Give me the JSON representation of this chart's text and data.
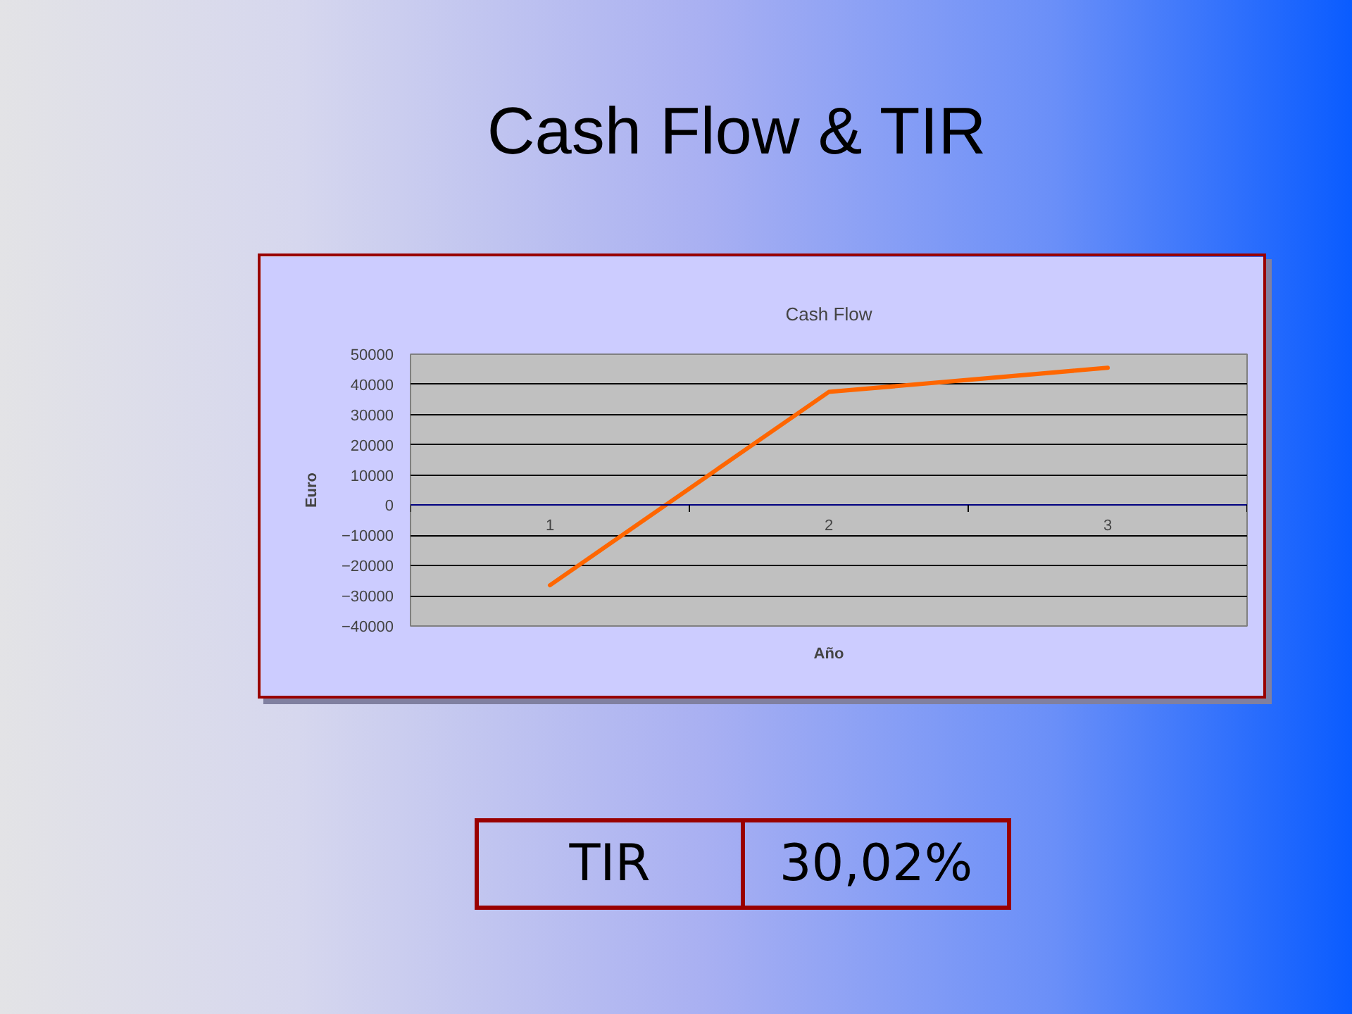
{
  "chart_data": {
    "type": "line",
    "title": "Cash Flow & TIR",
    "subtitle": "Cash Flow",
    "xlabel": "Año",
    "ylabel": "Euro",
    "categories": [
      "1",
      "2",
      "3"
    ],
    "series": [
      {
        "color": "#ff6600",
        "values": [
          -26500,
          37500,
          45500
        ]
      }
    ],
    "ylim": [
      -40000,
      50000
    ],
    "yticks": [
      -40000,
      -30000,
      -20000,
      -10000,
      0,
      10000,
      20000,
      30000,
      40000,
      50000
    ],
    "grid": "y",
    "line_style": "solid",
    "annotations": [
      "TIR",
      "30,02%"
    ]
  }
}
